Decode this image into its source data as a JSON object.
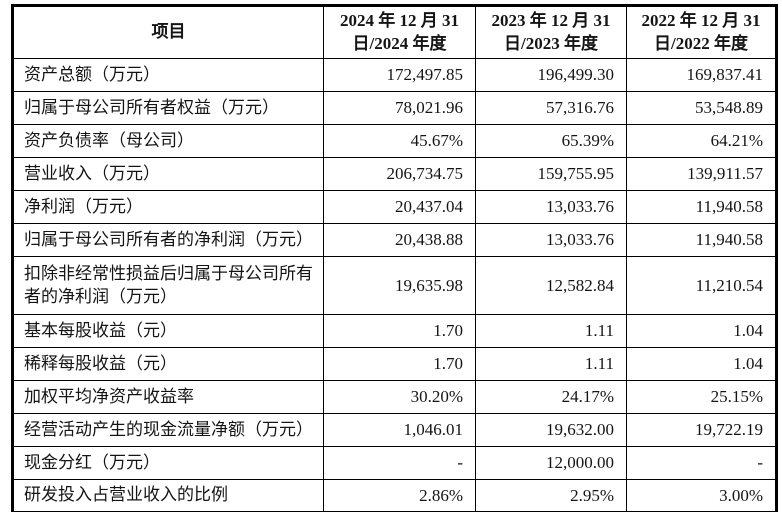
{
  "page": {
    "background": "#ffffff",
    "border_color": "#000000",
    "text_color": "#141414"
  },
  "table": {
    "header": {
      "item_label": "项目",
      "periods": [
        "2024 年 12 月 31 日/2024 年度",
        "2023 年 12 月 31 日/2023 年度",
        "2022 年 12 月 31 日/2022 年度"
      ]
    },
    "rows": [
      {
        "label": "资产总额（万元）",
        "values": [
          "172,497.85",
          "196,499.30",
          "169,837.41"
        ],
        "tall": false
      },
      {
        "label": "归属于母公司所有者权益（万元）",
        "values": [
          "78,021.96",
          "57,316.76",
          "53,548.89"
        ],
        "tall": false
      },
      {
        "label": "资产负债率（母公司）",
        "values": [
          "45.67%",
          "65.39%",
          "64.21%"
        ],
        "tall": false
      },
      {
        "label": "营业收入（万元）",
        "values": [
          "206,734.75",
          "159,755.95",
          "139,911.57"
        ],
        "tall": false
      },
      {
        "label": "净利润（万元）",
        "values": [
          "20,437.04",
          "13,033.76",
          "11,940.58"
        ],
        "tall": false
      },
      {
        "label": "归属于母公司所有者的净利润（万元）",
        "values": [
          "20,438.88",
          "13,033.76",
          "11,940.58"
        ],
        "tall": false
      },
      {
        "label": "扣除非经常性损益后归属于母公司所有者的净利润（万元）",
        "values": [
          "19,635.98",
          "12,582.84",
          "11,210.54"
        ],
        "tall": true
      },
      {
        "label": "基本每股收益（元）",
        "values": [
          "1.70",
          "1.11",
          "1.04"
        ],
        "tall": false
      },
      {
        "label": "稀释每股收益（元）",
        "values": [
          "1.70",
          "1.11",
          "1.04"
        ],
        "tall": false
      },
      {
        "label": "加权平均净资产收益率",
        "values": [
          "30.20%",
          "24.17%",
          "25.15%"
        ],
        "tall": false
      },
      {
        "label": "经营活动产生的现金流量净额（万元）",
        "values": [
          "1,046.01",
          "19,632.00",
          "19,722.19"
        ],
        "tall": false
      },
      {
        "label": "现金分红（万元）",
        "values": [
          "-",
          "12,000.00",
          "-"
        ],
        "tall": false
      },
      {
        "label": "研发投入占营业收入的比例",
        "values": [
          "2.86%",
          "2.95%",
          "3.00%"
        ],
        "tall": false
      }
    ]
  }
}
